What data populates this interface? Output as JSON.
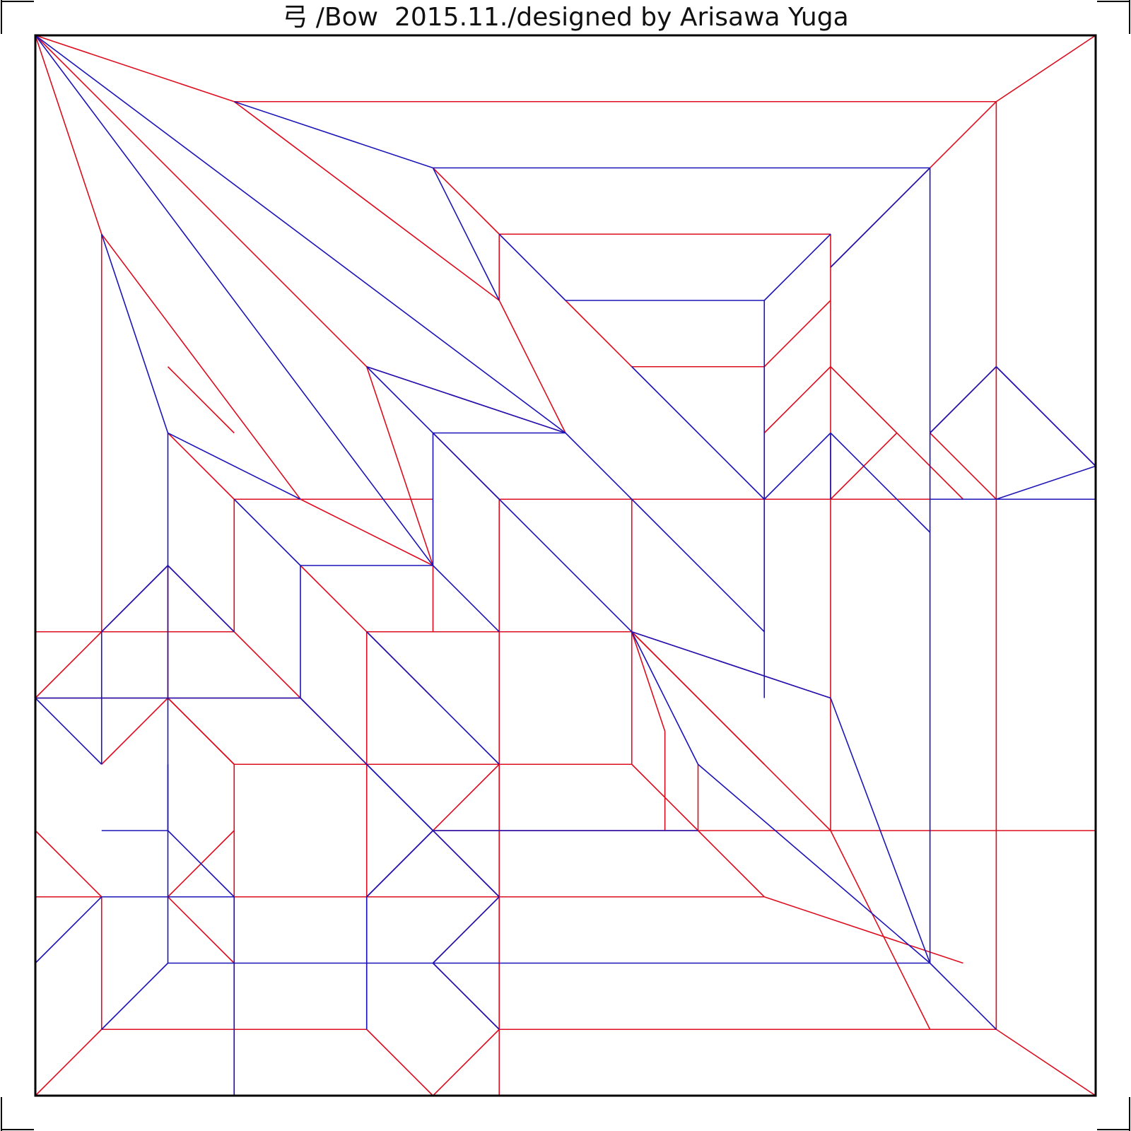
{
  "title": "弓 /Bow  2015.11./designed by Arisawa Yuga",
  "colors": {
    "mountain": "#dd0d1f",
    "valley": "#1b14b8",
    "border": "#000000"
  },
  "legend": {
    "mountain": "red lines",
    "valley": "blue lines"
  }
}
